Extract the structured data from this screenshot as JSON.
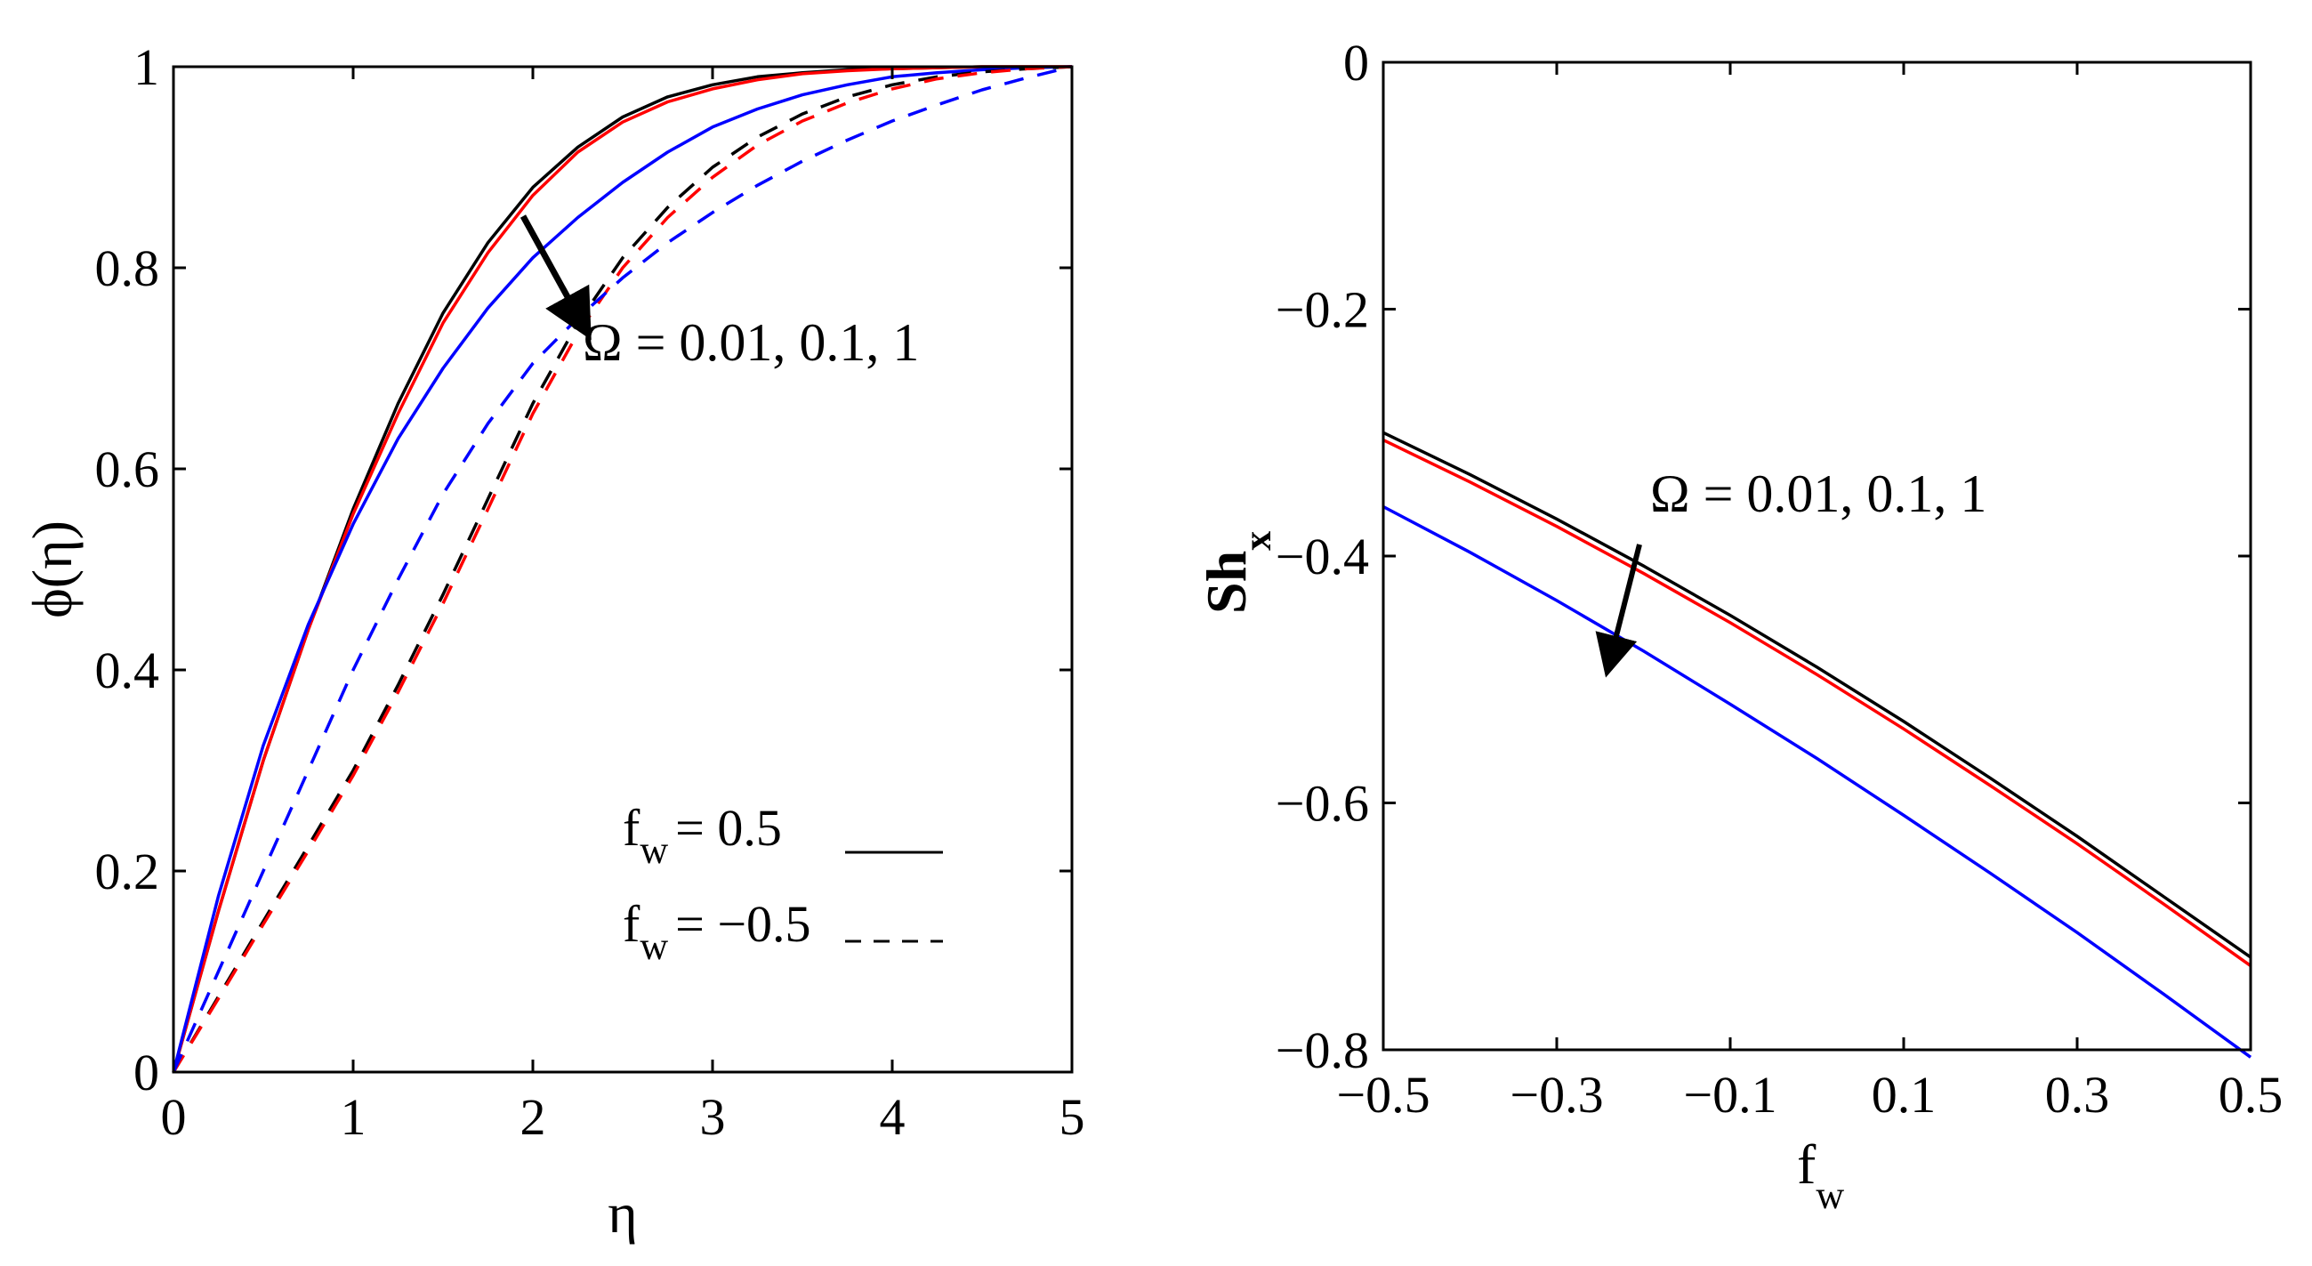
{
  "chart_data": [
    {
      "type": "line",
      "xlabel": "η",
      "ylabel": "ϕ(η)",
      "xlim": [
        0,
        5
      ],
      "ylim": [
        0,
        1
      ],
      "xticks": [
        0,
        1,
        2,
        3,
        4,
        5
      ],
      "yticks": [
        0,
        0.2,
        0.4,
        0.6,
        0.8,
        1
      ],
      "xtick_labels": [
        "0",
        "1",
        "2",
        "3",
        "4",
        "5"
      ],
      "ytick_labels": [
        "0",
        "0.2",
        "0.4",
        "0.6",
        "0.8",
        "1"
      ],
      "grid": false,
      "annotation": "Ω = 0.01, 0.1, 1",
      "legend": {
        "placement": "bottom-right",
        "entries": [
          {
            "main": "f",
            "sub": "w",
            "value": "=  0.5",
            "style": "solid"
          },
          {
            "main": "f",
            "sub": "w",
            "value": "= −0.5",
            "style": "dashed"
          }
        ]
      },
      "colors": [
        "#000000",
        "#ff0000",
        "#0000ff"
      ],
      "x": [
        0,
        0.25,
        0.5,
        0.75,
        1,
        1.25,
        1.5,
        1.75,
        2,
        2.25,
        2.5,
        2.75,
        3,
        3.25,
        3.5,
        3.75,
        4,
        4.25,
        4.5,
        4.75,
        5
      ],
      "series": [
        {
          "color": "#000000",
          "style": "solid",
          "values": [
            0,
            0.16,
            0.31,
            0.44,
            0.56,
            0.665,
            0.755,
            0.825,
            0.88,
            0.92,
            0.95,
            0.97,
            0.982,
            0.99,
            0.994,
            0.997,
            0.998,
            0.999,
            1,
            1,
            1
          ]
        },
        {
          "color": "#ff0000",
          "style": "solid",
          "values": [
            0,
            0.16,
            0.31,
            0.44,
            0.555,
            0.655,
            0.745,
            0.815,
            0.872,
            0.915,
            0.945,
            0.965,
            0.978,
            0.987,
            0.993,
            0.996,
            0.998,
            0.999,
            1,
            1,
            1
          ]
        },
        {
          "color": "#0000ff",
          "style": "solid",
          "values": [
            0,
            0.175,
            0.325,
            0.445,
            0.545,
            0.63,
            0.7,
            0.76,
            0.81,
            0.85,
            0.885,
            0.915,
            0.94,
            0.958,
            0.972,
            0.982,
            0.99,
            0.994,
            0.997,
            0.999,
            1
          ]
        },
        {
          "color": "#000000",
          "style": "dashed",
          "values": [
            0,
            0.075,
            0.15,
            0.225,
            0.3,
            0.385,
            0.475,
            0.57,
            0.665,
            0.745,
            0.81,
            0.86,
            0.9,
            0.93,
            0.953,
            0.97,
            0.982,
            0.99,
            0.995,
            0.998,
            1
          ]
        },
        {
          "color": "#ff0000",
          "style": "dashed",
          "values": [
            0,
            0.073,
            0.147,
            0.22,
            0.295,
            0.378,
            0.466,
            0.56,
            0.655,
            0.735,
            0.8,
            0.85,
            0.89,
            0.922,
            0.946,
            0.964,
            0.978,
            0.988,
            0.994,
            0.998,
            1
          ]
        },
        {
          "color": "#0000ff",
          "style": "dashed",
          "values": [
            0,
            0.1,
            0.2,
            0.3,
            0.4,
            0.49,
            0.575,
            0.645,
            0.705,
            0.75,
            0.79,
            0.825,
            0.855,
            0.882,
            0.906,
            0.927,
            0.946,
            0.962,
            0.977,
            0.989,
            1
          ]
        }
      ]
    },
    {
      "type": "line",
      "xlabel": {
        "main": "f",
        "sub": "w"
      },
      "ylabel": {
        "main": "Sh",
        "sub": "x"
      },
      "xlim": [
        -0.5,
        0.5
      ],
      "ylim": [
        -0.8,
        0
      ],
      "xticks": [
        -0.5,
        -0.3,
        -0.1,
        0.1,
        0.3,
        0.5
      ],
      "yticks": [
        -0.8,
        -0.6,
        -0.4,
        -0.2,
        0
      ],
      "xtick_labels": [
        "−0.5",
        "−0.3",
        "−0.1",
        "0.1",
        "0.3",
        "0.5"
      ],
      "ytick_labels": [
        "−0.8",
        "−0.6",
        "−0.4",
        "−0.2",
        "0"
      ],
      "grid": false,
      "annotation": "Ω = 0.01, 0.1, 1",
      "colors": [
        "#000000",
        "#ff0000",
        "#0000ff"
      ],
      "x": [
        -0.5,
        -0.4,
        -0.3,
        -0.2,
        -0.1,
        0,
        0.1,
        0.2,
        0.3,
        0.4,
        0.5
      ],
      "series": [
        {
          "color": "#000000",
          "style": "solid",
          "values": [
            -0.3,
            -0.334,
            -0.37,
            -0.408,
            -0.448,
            -0.49,
            -0.534,
            -0.58,
            -0.627,
            -0.676,
            -0.725
          ]
        },
        {
          "color": "#ff0000",
          "style": "solid",
          "values": [
            -0.306,
            -0.34,
            -0.376,
            -0.414,
            -0.454,
            -0.496,
            -0.54,
            -0.586,
            -0.633,
            -0.682,
            -0.732
          ]
        },
        {
          "color": "#0000ff",
          "style": "solid",
          "values": [
            -0.36,
            -0.397,
            -0.436,
            -0.477,
            -0.52,
            -0.564,
            -0.61,
            -0.657,
            -0.705,
            -0.755,
            -0.806
          ]
        }
      ]
    }
  ]
}
